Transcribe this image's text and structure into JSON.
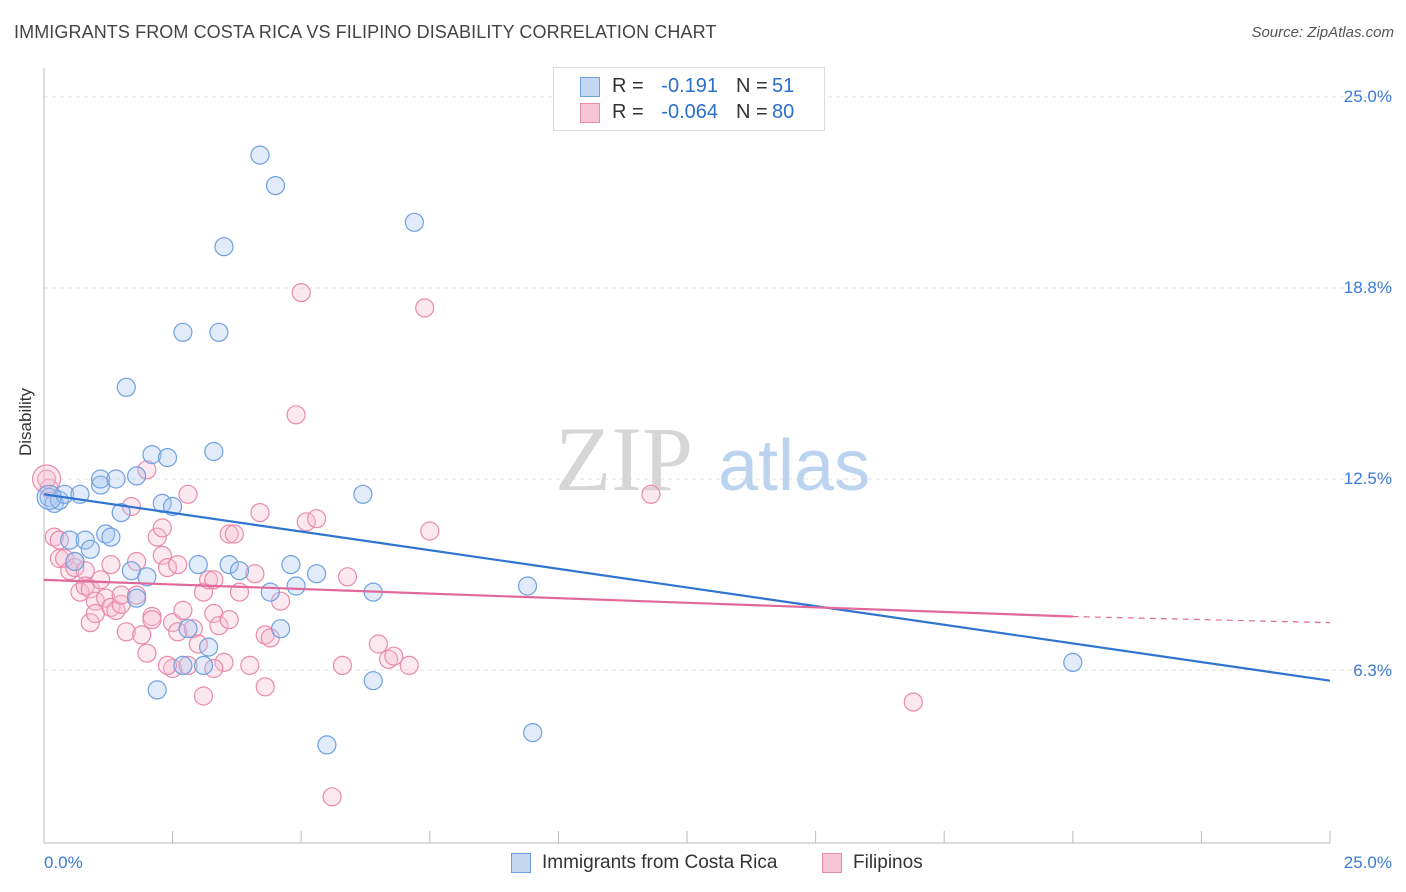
{
  "header": {
    "title": "IMMIGRANTS FROM COSTA RICA VS FILIPINO DISABILITY CORRELATION CHART",
    "source": "Source: ZipAtlas.com"
  },
  "watermark": {
    "zip": "ZIP",
    "atlas": "atlas"
  },
  "legend": {
    "rows": [
      {
        "r_label": "R =",
        "r_value": "-0.191",
        "n_label": "N =",
        "n_value": "51",
        "color": "#6fa0e0",
        "fill": "#c3d7f3"
      },
      {
        "r_label": "R =",
        "r_value": "-0.064",
        "n_label": "N =",
        "n_value": "80",
        "color": "#e98aab",
        "fill": "#f7c6d6"
      }
    ]
  },
  "bottom_legend": [
    {
      "label": "Immigrants from Costa Rica",
      "color": "#6fa0e0",
      "fill": "#c3d7f3"
    },
    {
      "label": "Filipinos",
      "color": "#e98aab",
      "fill": "#f7c6d6"
    }
  ],
  "axes": {
    "y_title": "Disability",
    "y_ticks": [
      {
        "label": "25.0%",
        "value": 25.0
      },
      {
        "label": "18.8%",
        "value": 18.75
      },
      {
        "label": "12.5%",
        "value": 12.5
      },
      {
        "label": "6.3%",
        "value": 6.25
      }
    ],
    "x_min_label": "0.0%",
    "x_max_label": "25.0%"
  },
  "chart_data": {
    "type": "scatter",
    "xlim": [
      0,
      25
    ],
    "ylim": [
      0,
      25.5
    ],
    "xlabel": "",
    "ylabel": "Disability",
    "grid": "horizontal dashed",
    "series": [
      {
        "name": "Immigrants from Costa Rica",
        "color": "#3a7bd5",
        "points": [
          [
            0.1,
            11.9
          ],
          [
            0.2,
            11.7
          ],
          [
            0.3,
            11.8
          ],
          [
            0.4,
            12.0
          ],
          [
            0.5,
            10.5
          ],
          [
            0.6,
            9.8
          ],
          [
            0.7,
            12.0
          ],
          [
            0.8,
            10.5
          ],
          [
            0.9,
            10.2
          ],
          [
            1.1,
            12.3
          ],
          [
            1.1,
            12.5
          ],
          [
            1.2,
            10.7
          ],
          [
            1.3,
            10.6
          ],
          [
            1.4,
            12.5
          ],
          [
            1.5,
            11.4
          ],
          [
            1.6,
            15.5
          ],
          [
            1.7,
            9.5
          ],
          [
            1.8,
            12.6
          ],
          [
            1.8,
            8.6
          ],
          [
            2.0,
            9.3
          ],
          [
            2.1,
            13.3
          ],
          [
            2.2,
            5.6
          ],
          [
            2.3,
            11.7
          ],
          [
            2.4,
            13.2
          ],
          [
            2.5,
            11.6
          ],
          [
            2.7,
            6.4
          ],
          [
            2.7,
            17.3
          ],
          [
            2.8,
            7.6
          ],
          [
            3.0,
            9.7
          ],
          [
            3.1,
            6.4
          ],
          [
            3.2,
            7.0
          ],
          [
            3.3,
            13.4
          ],
          [
            3.4,
            17.3
          ],
          [
            3.5,
            20.1
          ],
          [
            3.6,
            9.7
          ],
          [
            3.8,
            9.5
          ],
          [
            4.2,
            23.1
          ],
          [
            4.4,
            8.8
          ],
          [
            4.5,
            22.1
          ],
          [
            4.6,
            7.6
          ],
          [
            4.8,
            9.7
          ],
          [
            4.9,
            9.0
          ],
          [
            5.3,
            9.4
          ],
          [
            5.5,
            3.8
          ],
          [
            6.2,
            12.0
          ],
          [
            6.4,
            8.8
          ],
          [
            6.4,
            5.9
          ],
          [
            7.2,
            20.9
          ],
          [
            9.4,
            9.0
          ],
          [
            9.5,
            4.2
          ],
          [
            20.0,
            6.5
          ]
        ],
        "trend": {
          "x0": 0.0,
          "y0": 12.0,
          "x1": 25.0,
          "y1": 5.9
        }
      },
      {
        "name": "Filipinos",
        "color": "#e8709a",
        "points": [
          [
            0.1,
            12.2
          ],
          [
            0.2,
            10.6
          ],
          [
            0.3,
            10.5
          ],
          [
            0.3,
            9.9
          ],
          [
            0.4,
            9.9
          ],
          [
            0.5,
            9.5
          ],
          [
            0.6,
            9.6
          ],
          [
            0.6,
            9.8
          ],
          [
            0.7,
            8.8
          ],
          [
            0.8,
            9.5
          ],
          [
            0.8,
            9.0
          ],
          [
            0.9,
            8.9
          ],
          [
            0.9,
            7.8
          ],
          [
            1.0,
            8.5
          ],
          [
            1.0,
            8.1
          ],
          [
            1.1,
            9.2
          ],
          [
            1.2,
            8.6
          ],
          [
            1.3,
            8.3
          ],
          [
            1.3,
            9.7
          ],
          [
            1.4,
            8.2
          ],
          [
            1.5,
            8.4
          ],
          [
            1.5,
            8.7
          ],
          [
            1.6,
            7.5
          ],
          [
            1.7,
            11.6
          ],
          [
            1.8,
            9.8
          ],
          [
            1.8,
            8.7
          ],
          [
            1.9,
            7.4
          ],
          [
            2.0,
            12.8
          ],
          [
            2.0,
            6.8
          ],
          [
            2.1,
            8.0
          ],
          [
            2.1,
            7.9
          ],
          [
            2.2,
            10.6
          ],
          [
            2.3,
            10.9
          ],
          [
            2.3,
            10.0
          ],
          [
            2.4,
            9.6
          ],
          [
            2.5,
            6.3
          ],
          [
            2.5,
            7.8
          ],
          [
            2.6,
            7.5
          ],
          [
            2.6,
            9.7
          ],
          [
            2.7,
            8.2
          ],
          [
            2.8,
            12.0
          ],
          [
            2.8,
            6.4
          ],
          [
            2.9,
            7.6
          ],
          [
            3.0,
            7.1
          ],
          [
            3.1,
            5.4
          ],
          [
            3.1,
            8.8
          ],
          [
            3.2,
            9.2
          ],
          [
            3.3,
            9.2
          ],
          [
            3.3,
            8.1
          ],
          [
            3.4,
            7.7
          ],
          [
            3.5,
            6.5
          ],
          [
            3.6,
            7.9
          ],
          [
            3.6,
            10.7
          ],
          [
            3.7,
            10.7
          ],
          [
            3.8,
            8.8
          ],
          [
            4.0,
            6.4
          ],
          [
            4.1,
            9.4
          ],
          [
            4.2,
            11.4
          ],
          [
            4.3,
            5.7
          ],
          [
            4.3,
            7.4
          ],
          [
            4.4,
            7.3
          ],
          [
            4.6,
            8.5
          ],
          [
            4.9,
            14.6
          ],
          [
            5.0,
            18.6
          ],
          [
            5.1,
            11.1
          ],
          [
            5.3,
            11.2
          ],
          [
            5.6,
            2.1
          ],
          [
            5.8,
            6.4
          ],
          [
            5.9,
            9.3
          ],
          [
            6.5,
            7.1
          ],
          [
            6.7,
            6.6
          ],
          [
            6.8,
            6.7
          ],
          [
            7.4,
            18.1
          ],
          [
            7.5,
            10.8
          ],
          [
            7.1,
            6.4
          ],
          [
            11.8,
            12.0
          ],
          [
            16.9,
            5.2
          ],
          [
            0.05,
            12.5
          ],
          [
            2.4,
            6.4
          ],
          [
            3.3,
            6.3
          ]
        ],
        "trend": {
          "x0": 0.0,
          "y0": 9.2,
          "x1": 20.0,
          "y1": 8.0
        },
        "trend_dashed": {
          "x0": 20.0,
          "y0": 8.0,
          "x1": 25.0,
          "y1": 7.8
        }
      }
    ]
  }
}
